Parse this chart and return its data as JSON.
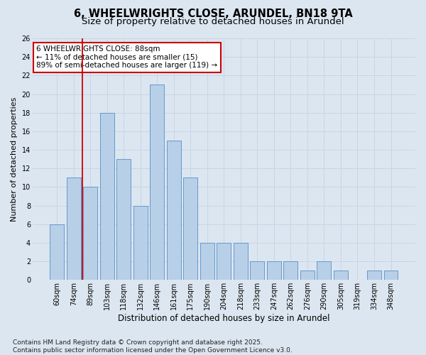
{
  "title1": "6, WHEELWRIGHTS CLOSE, ARUNDEL, BN18 9TA",
  "title2": "Size of property relative to detached houses in Arundel",
  "xlabel": "Distribution of detached houses by size in Arundel",
  "ylabel": "Number of detached properties",
  "categories": [
    "60sqm",
    "74sqm",
    "89sqm",
    "103sqm",
    "118sqm",
    "132sqm",
    "146sqm",
    "161sqm",
    "175sqm",
    "190sqm",
    "204sqm",
    "218sqm",
    "233sqm",
    "247sqm",
    "262sqm",
    "276sqm",
    "290sqm",
    "305sqm",
    "319sqm",
    "334sqm",
    "348sqm"
  ],
  "values": [
    6,
    11,
    10,
    18,
    13,
    8,
    21,
    15,
    11,
    4,
    4,
    4,
    2,
    2,
    2,
    1,
    2,
    1,
    0,
    1,
    1
  ],
  "bar_color": "#b8cfe8",
  "bar_edge_color": "#6699cc",
  "property_line_index": 1.5,
  "annotation_line1": "6 WHEELWRIGHTS CLOSE: 88sqm",
  "annotation_line2": "← 11% of detached houses are smaller (15)",
  "annotation_line3": "89% of semi-detached houses are larger (119) →",
  "annotation_box_color": "white",
  "annotation_box_edge_color": "#cc0000",
  "property_line_color": "#cc0000",
  "ylim": [
    0,
    26
  ],
  "yticks": [
    0,
    2,
    4,
    6,
    8,
    10,
    12,
    14,
    16,
    18,
    20,
    22,
    24,
    26
  ],
  "grid_color": "#c8d4e8",
  "background_color": "#dce6f0",
  "footer": "Contains HM Land Registry data © Crown copyright and database right 2025.\nContains public sector information licensed under the Open Government Licence v3.0.",
  "title1_fontsize": 10.5,
  "title2_fontsize": 9.5,
  "xlabel_fontsize": 8.5,
  "ylabel_fontsize": 8,
  "tick_fontsize": 7,
  "annotation_fontsize": 7.5,
  "footer_fontsize": 6.5
}
